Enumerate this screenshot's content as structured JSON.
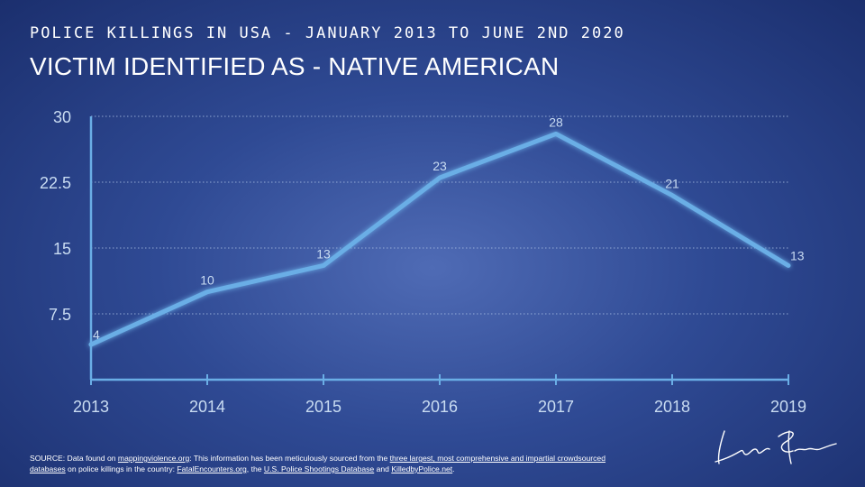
{
  "header": {
    "kicker": "POLICE KILLINGS IN USA - JANUARY 2013 TO JUNE 2ND 2020",
    "title": "VICTIM IDENTIFIED AS - NATIVE AMERICAN"
  },
  "chart_data": {
    "type": "line",
    "x": [
      "2013",
      "2014",
      "2015",
      "2016",
      "2017",
      "2018",
      "2019"
    ],
    "series": [
      {
        "values": [
          4,
          10,
          13,
          23,
          28,
          21,
          13
        ]
      }
    ],
    "data_labels": [
      "4",
      "10",
      "13",
      "23",
      "28",
      "21",
      "13"
    ],
    "yticks": [
      "30",
      "22.5",
      "15",
      "7.5"
    ],
    "ytick_values": [
      30,
      22.5,
      15,
      7.5
    ],
    "ylim": [
      0,
      30
    ],
    "grid": "horizontal dotted",
    "legend": "none",
    "colors": {
      "line": "#6aaee6",
      "axis": "#6aaee6",
      "text": "#c9dcf2",
      "grid": "#a9bfe3"
    }
  },
  "footer": {
    "source_prefix": "SOURCE: Data found on ",
    "source_link1": "mappingviolence.org",
    "source_mid1": ": This information has been meticulously sourced from the ",
    "source_link2": "three largest, most comprehensive and impartial crowdsourced databases",
    "source_mid2": " on police killings in the country: ",
    "source_link3": "FatalEncounters.org",
    "source_mid3": ", the ",
    "source_link4": "U.S. Police Shootings Database",
    "source_mid4": " and ",
    "source_link5": "KilledbyPolice.net",
    "source_end": "."
  },
  "signature": {
    "icon": "signature-logo"
  }
}
